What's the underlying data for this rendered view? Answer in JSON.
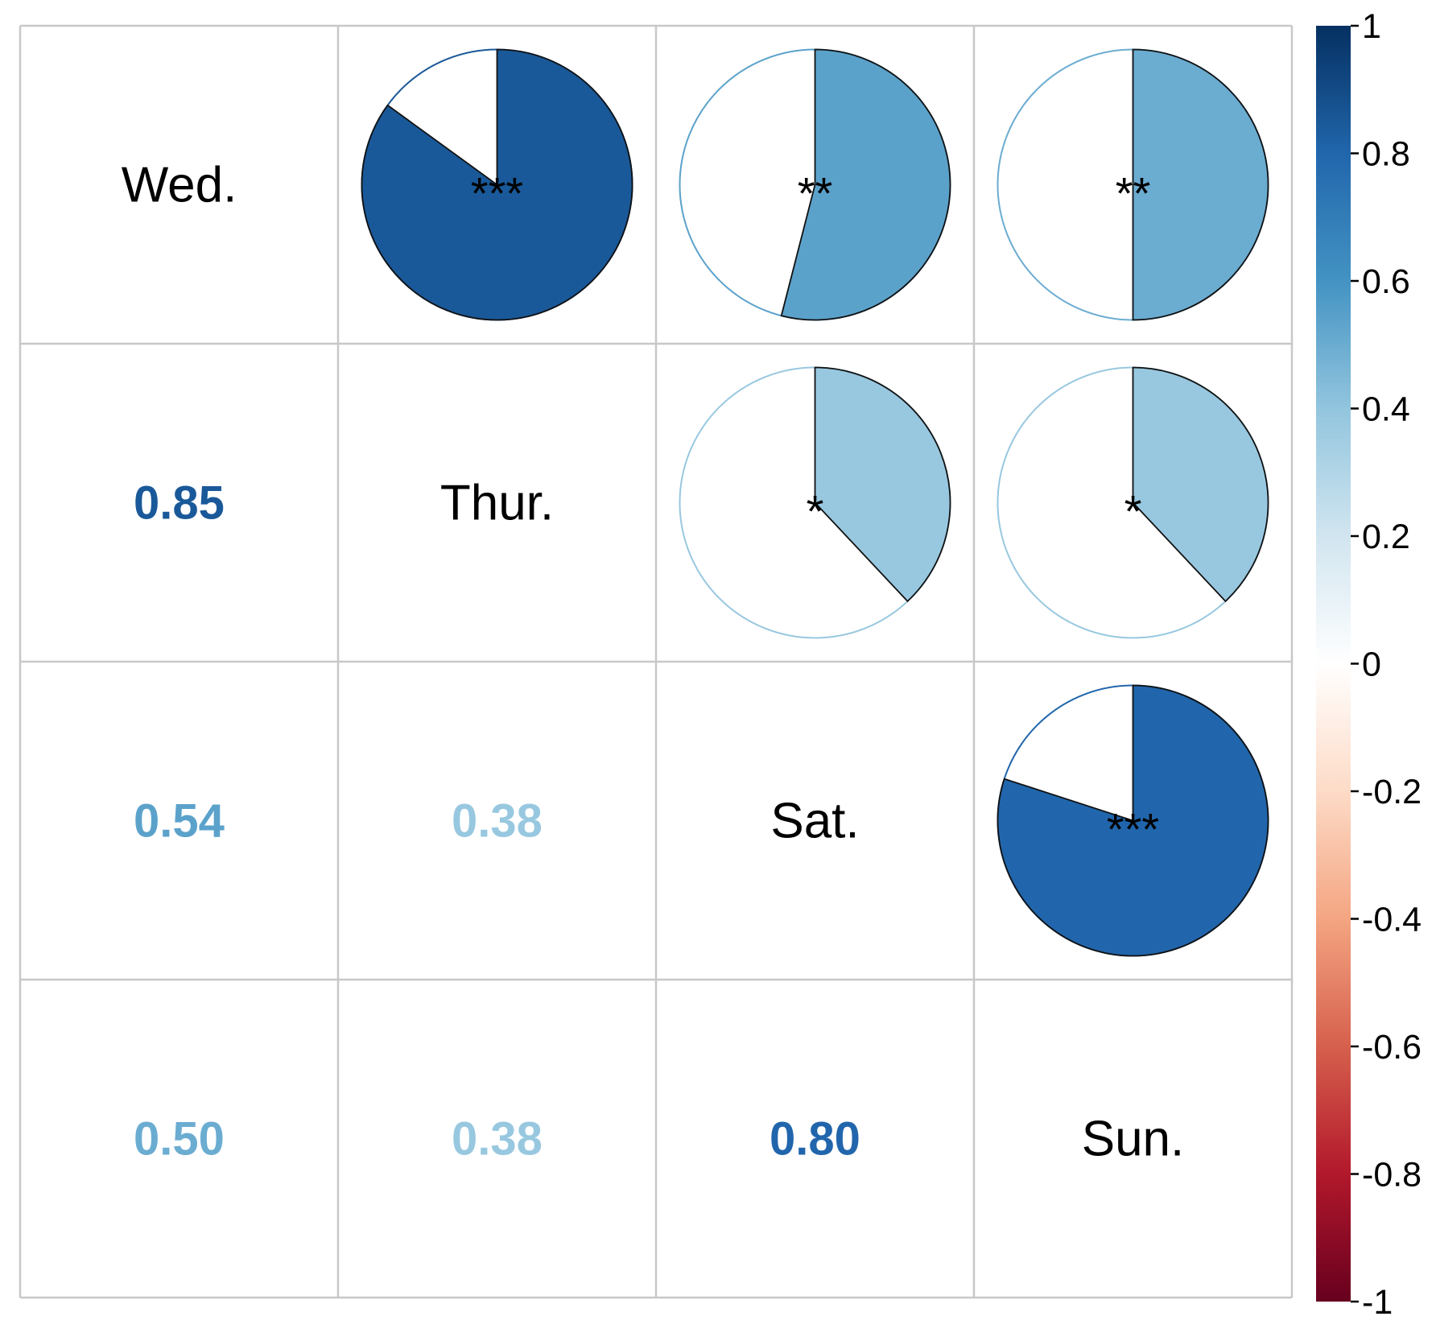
{
  "chart_data": {
    "type": "heatmap",
    "subtype": "correlation-matrix (mixed: numbers lower, pies upper)",
    "variables": [
      "Wed.",
      "Thur.",
      "Sat.",
      "Sun."
    ],
    "correlations": [
      {
        "row": "Thur.",
        "col": "Wed.",
        "r": 0.85,
        "label": "0.85",
        "stars": "***"
      },
      {
        "row": "Sat.",
        "col": "Wed.",
        "r": 0.54,
        "label": "0.54",
        "stars": "**"
      },
      {
        "row": "Sun.",
        "col": "Wed.",
        "r": 0.5,
        "label": "0.50",
        "stars": "**"
      },
      {
        "row": "Sat.",
        "col": "Thur.",
        "r": 0.38,
        "label": "0.38",
        "stars": "*"
      },
      {
        "row": "Sun.",
        "col": "Thur.",
        "r": 0.38,
        "label": "0.38",
        "stars": "*"
      },
      {
        "row": "Sun.",
        "col": "Sat.",
        "r": 0.8,
        "label": "0.80",
        "stars": "***"
      }
    ],
    "colorbar": {
      "range": [
        -1,
        1
      ],
      "ticks": [
        "1",
        "0.8",
        "0.6",
        "0.4",
        "0.2",
        "0",
        "-0.2",
        "-0.4",
        "-0.6",
        "-0.8",
        "-1"
      ],
      "colors": [
        "#053061",
        "#2166ac",
        "#4393c3",
        "#92c5de",
        "#d1e5f0",
        "#ffffff",
        "#fddbc7",
        "#f4a582",
        "#d6604d",
        "#b2182b",
        "#67001f"
      ]
    },
    "diagonal": "variable names",
    "lower_triangle": "coefficient numbers",
    "upper_triangle": "pie glyphs with significance stars"
  }
}
